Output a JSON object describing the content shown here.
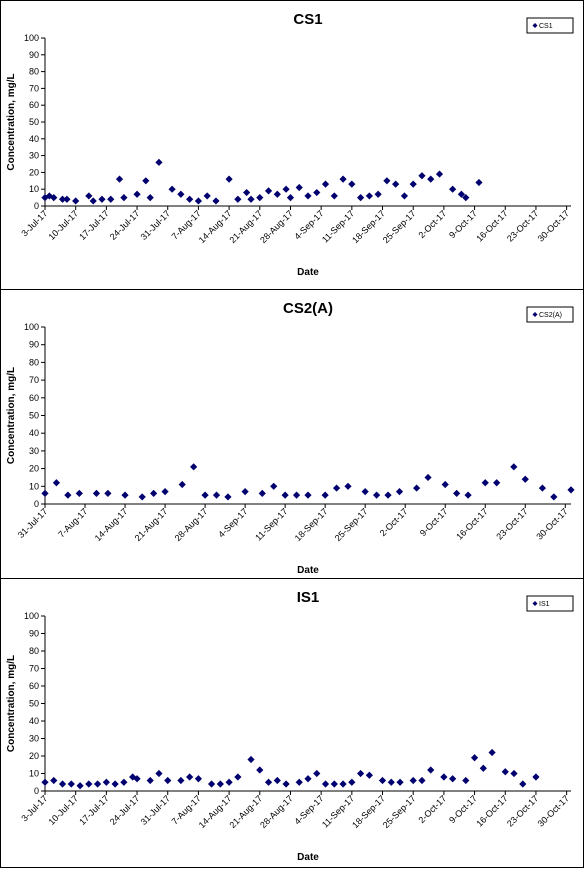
{
  "chart_data": [
    {
      "type": "scatter",
      "title": "CS1",
      "xlabel": "Date",
      "ylabel": "Concentration, mg/L",
      "ylim": [
        0,
        100
      ],
      "yticks": [
        0,
        10,
        20,
        30,
        40,
        50,
        60,
        70,
        80,
        90,
        100
      ],
      "grid": false,
      "legend_position": "top-right",
      "xrange": [
        "2017-07-03",
        "2017-10-31"
      ],
      "xtick_labels": [
        "3-Jul-17",
        "10-Jul-17",
        "17-Jul-17",
        "24-Jul-17",
        "31-Jul-17",
        "7-Aug-17",
        "14-Aug-17",
        "21-Aug-17",
        "28-Aug-17",
        "4-Sep-17",
        "11-Sep-17",
        "18-Sep-17",
        "25-Sep-17",
        "2-Oct-17",
        "9-Oct-17",
        "16-Oct-17",
        "23-Oct-17",
        "30-Oct-17"
      ],
      "series": [
        {
          "name": "CS1",
          "color": "#00006e",
          "marker": "diamond",
          "points": [
            [
              "2017-07-03",
              5
            ],
            [
              "2017-07-04",
              6
            ],
            [
              "2017-07-05",
              5
            ],
            [
              "2017-07-07",
              4
            ],
            [
              "2017-07-08",
              4
            ],
            [
              "2017-07-10",
              3
            ],
            [
              "2017-07-13",
              6
            ],
            [
              "2017-07-14",
              3
            ],
            [
              "2017-07-16",
              4
            ],
            [
              "2017-07-18",
              4
            ],
            [
              "2017-07-20",
              16
            ],
            [
              "2017-07-21",
              5
            ],
            [
              "2017-07-24",
              7
            ],
            [
              "2017-07-26",
              15
            ],
            [
              "2017-07-27",
              5
            ],
            [
              "2017-07-29",
              26
            ],
            [
              "2017-08-01",
              10
            ],
            [
              "2017-08-03",
              7
            ],
            [
              "2017-08-05",
              4
            ],
            [
              "2017-08-07",
              3
            ],
            [
              "2017-08-09",
              6
            ],
            [
              "2017-08-11",
              3
            ],
            [
              "2017-08-14",
              16
            ],
            [
              "2017-08-16",
              4
            ],
            [
              "2017-08-18",
              8
            ],
            [
              "2017-08-19",
              4
            ],
            [
              "2017-08-21",
              5
            ],
            [
              "2017-08-23",
              9
            ],
            [
              "2017-08-25",
              7
            ],
            [
              "2017-08-27",
              10
            ],
            [
              "2017-08-28",
              5
            ],
            [
              "2017-08-30",
              11
            ],
            [
              "2017-09-01",
              6
            ],
            [
              "2017-09-03",
              8
            ],
            [
              "2017-09-05",
              13
            ],
            [
              "2017-09-07",
              6
            ],
            [
              "2017-09-09",
              16
            ],
            [
              "2017-09-11",
              13
            ],
            [
              "2017-09-13",
              5
            ],
            [
              "2017-09-15",
              6
            ],
            [
              "2017-09-17",
              7
            ],
            [
              "2017-09-19",
              15
            ],
            [
              "2017-09-21",
              13
            ],
            [
              "2017-09-23",
              6
            ],
            [
              "2017-09-25",
              13
            ],
            [
              "2017-09-27",
              18
            ],
            [
              "2017-09-29",
              16
            ],
            [
              "2017-10-01",
              19
            ],
            [
              "2017-10-04",
              10
            ],
            [
              "2017-10-06",
              7
            ],
            [
              "2017-10-07",
              5
            ],
            [
              "2017-10-10",
              14
            ]
          ]
        }
      ]
    },
    {
      "type": "scatter",
      "title": "CS2(A)",
      "xlabel": "Date",
      "ylabel": "Concentration, mg/L",
      "ylim": [
        0,
        100
      ],
      "yticks": [
        0,
        10,
        20,
        30,
        40,
        50,
        60,
        70,
        80,
        90,
        100
      ],
      "grid": false,
      "legend_position": "top-right",
      "xrange": [
        "2017-07-31",
        "2017-10-31"
      ],
      "xtick_labels": [
        "31-Jul-17",
        "7-Aug-17",
        "14-Aug-17",
        "21-Aug-17",
        "28-Aug-17",
        "4-Sep-17",
        "11-Sep-17",
        "18-Sep-17",
        "25-Sep-17",
        "2-Oct-17",
        "9-Oct-17",
        "16-Oct-17",
        "23-Oct-17",
        "30-Oct-17"
      ],
      "series": [
        {
          "name": "CS2(A)",
          "color": "#00006e",
          "marker": "diamond",
          "points": [
            [
              "2017-07-31",
              6
            ],
            [
              "2017-08-02",
              12
            ],
            [
              "2017-08-04",
              5
            ],
            [
              "2017-08-06",
              6
            ],
            [
              "2017-08-09",
              6
            ],
            [
              "2017-08-11",
              6
            ],
            [
              "2017-08-14",
              5
            ],
            [
              "2017-08-17",
              4
            ],
            [
              "2017-08-19",
              6
            ],
            [
              "2017-08-21",
              7
            ],
            [
              "2017-08-24",
              11
            ],
            [
              "2017-08-26",
              21
            ],
            [
              "2017-08-28",
              5
            ],
            [
              "2017-08-30",
              5
            ],
            [
              "2017-09-01",
              4
            ],
            [
              "2017-09-04",
              7
            ],
            [
              "2017-09-07",
              6
            ],
            [
              "2017-09-09",
              10
            ],
            [
              "2017-09-11",
              5
            ],
            [
              "2017-09-13",
              5
            ],
            [
              "2017-09-15",
              5
            ],
            [
              "2017-09-18",
              5
            ],
            [
              "2017-09-20",
              9
            ],
            [
              "2017-09-22",
              10
            ],
            [
              "2017-09-25",
              7
            ],
            [
              "2017-09-27",
              5
            ],
            [
              "2017-09-29",
              5
            ],
            [
              "2017-10-01",
              7
            ],
            [
              "2017-10-04",
              9
            ],
            [
              "2017-10-06",
              15
            ],
            [
              "2017-10-09",
              11
            ],
            [
              "2017-10-11",
              6
            ],
            [
              "2017-10-13",
              5
            ],
            [
              "2017-10-16",
              12
            ],
            [
              "2017-10-18",
              12
            ],
            [
              "2017-10-21",
              21
            ],
            [
              "2017-10-23",
              14
            ],
            [
              "2017-10-26",
              9
            ],
            [
              "2017-10-28",
              4
            ],
            [
              "2017-10-31",
              8
            ]
          ]
        }
      ]
    },
    {
      "type": "scatter",
      "title": "IS1",
      "xlabel": "Date",
      "ylabel": "Concentration, mg/L",
      "ylim": [
        0,
        100
      ],
      "yticks": [
        0,
        10,
        20,
        30,
        40,
        50,
        60,
        70,
        80,
        90,
        100
      ],
      "grid": false,
      "legend_position": "top-right",
      "xrange": [
        "2017-07-03",
        "2017-10-31"
      ],
      "xtick_labels": [
        "3-Jul-17",
        "10-Jul-17",
        "17-Jul-17",
        "24-Jul-17",
        "31-Jul-17",
        "7-Aug-17",
        "14-Aug-17",
        "21-Aug-17",
        "28-Aug-17",
        "4-Sep-17",
        "11-Sep-17",
        "18-Sep-17",
        "25-Sep-17",
        "2-Oct-17",
        "9-Oct-17",
        "16-Oct-17",
        "23-Oct-17",
        "30-Oct-17"
      ],
      "series": [
        {
          "name": "IS1",
          "color": "#00006e",
          "marker": "diamond",
          "points": [
            [
              "2017-07-03",
              5
            ],
            [
              "2017-07-05",
              6
            ],
            [
              "2017-07-07",
              4
            ],
            [
              "2017-07-09",
              4
            ],
            [
              "2017-07-11",
              3
            ],
            [
              "2017-07-13",
              4
            ],
            [
              "2017-07-15",
              4
            ],
            [
              "2017-07-17",
              5
            ],
            [
              "2017-07-19",
              4
            ],
            [
              "2017-07-21",
              5
            ],
            [
              "2017-07-23",
              8
            ],
            [
              "2017-07-24",
              7
            ],
            [
              "2017-07-27",
              6
            ],
            [
              "2017-07-29",
              10
            ],
            [
              "2017-07-31",
              6
            ],
            [
              "2017-08-03",
              6
            ],
            [
              "2017-08-05",
              8
            ],
            [
              "2017-08-07",
              7
            ],
            [
              "2017-08-10",
              4
            ],
            [
              "2017-08-12",
              4
            ],
            [
              "2017-08-14",
              5
            ],
            [
              "2017-08-16",
              8
            ],
            [
              "2017-08-19",
              18
            ],
            [
              "2017-08-21",
              12
            ],
            [
              "2017-08-23",
              5
            ],
            [
              "2017-08-25",
              6
            ],
            [
              "2017-08-27",
              4
            ],
            [
              "2017-08-30",
              5
            ],
            [
              "2017-09-01",
              7
            ],
            [
              "2017-09-03",
              10
            ],
            [
              "2017-09-05",
              4
            ],
            [
              "2017-09-07",
              4
            ],
            [
              "2017-09-09",
              4
            ],
            [
              "2017-09-11",
              5
            ],
            [
              "2017-09-13",
              10
            ],
            [
              "2017-09-15",
              9
            ],
            [
              "2017-09-18",
              6
            ],
            [
              "2017-09-20",
              5
            ],
            [
              "2017-09-22",
              5
            ],
            [
              "2017-09-25",
              6
            ],
            [
              "2017-09-27",
              6
            ],
            [
              "2017-09-29",
              12
            ],
            [
              "2017-10-02",
              8
            ],
            [
              "2017-10-04",
              7
            ],
            [
              "2017-10-07",
              6
            ],
            [
              "2017-10-09",
              19
            ],
            [
              "2017-10-11",
              13
            ],
            [
              "2017-10-13",
              22
            ],
            [
              "2017-10-16",
              11
            ],
            [
              "2017-10-18",
              10
            ],
            [
              "2017-10-20",
              4
            ],
            [
              "2017-10-23",
              8
            ]
          ]
        }
      ]
    }
  ]
}
